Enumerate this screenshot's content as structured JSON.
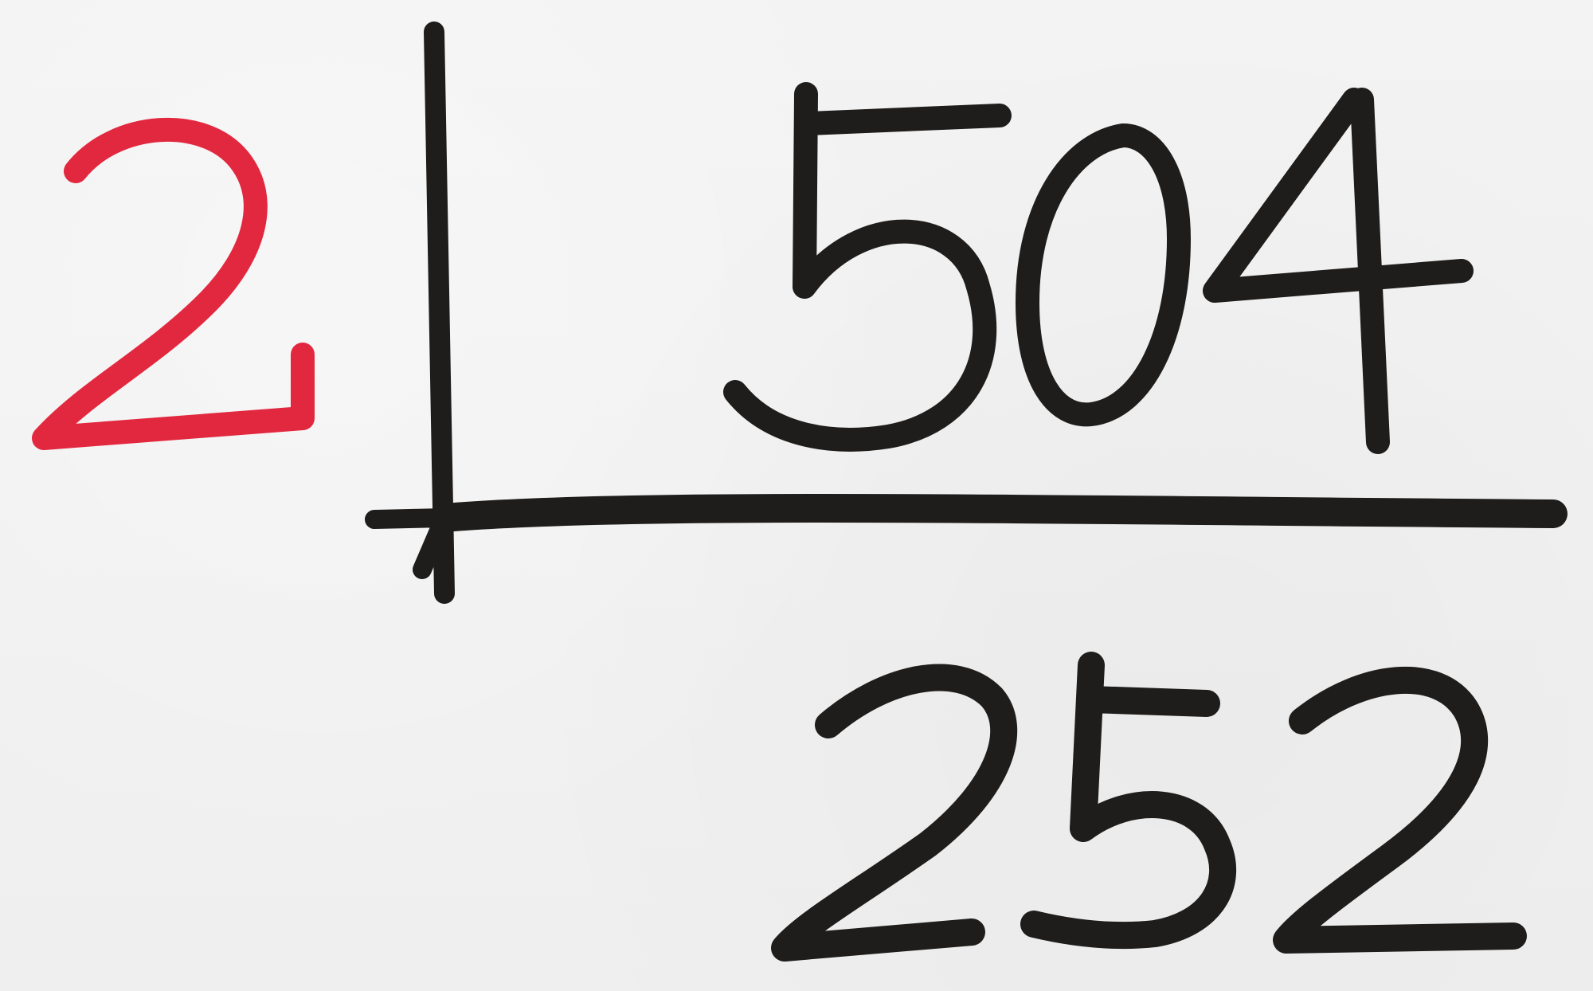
{
  "division": {
    "divisor": "2",
    "dividend": "504",
    "quotient": "252"
  },
  "colors": {
    "divisor": "#e2283f",
    "ink": "#1f1d1b",
    "paper": "#f1f1f1"
  }
}
